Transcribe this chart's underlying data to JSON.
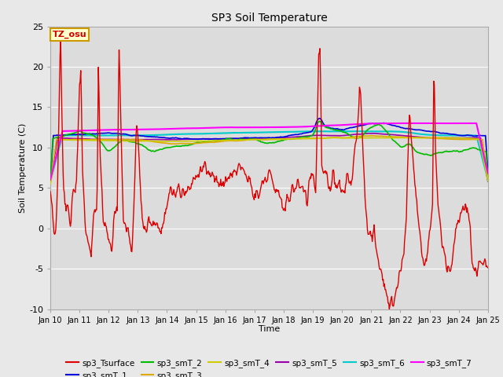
{
  "title": "SP3 Soil Temperature",
  "xlabel": "Time",
  "ylabel": "Soil Temperature (C)",
  "ylim": [
    -10,
    25
  ],
  "xlim": [
    0,
    15
  ],
  "fig_bg": "#e8e8e8",
  "plot_bg": "#dcdcdc",
  "tz_label": "TZ_osu",
  "x_tick_labels": [
    "Jan 10",
    "Jan 11",
    "Jan 12",
    "Jan 13",
    "Jan 14",
    "Jan 15",
    "Jan 16",
    "Jan 17",
    "Jan 18",
    "Jan 19",
    "Jan 20",
    "Jan 21",
    "Jan 22",
    "Jan 23",
    "Jan 24",
    "Jan 25"
  ],
  "series_colors": {
    "sp3_Tsurface": "#dd0000",
    "sp3_smT_1": "#0000dd",
    "sp3_smT_2": "#00bb00",
    "sp3_smT_3": "#ddaa00",
    "sp3_smT_4": "#cccc00",
    "sp3_smT_5": "#9900aa",
    "sp3_smT_6": "#00cccc",
    "sp3_smT_7": "#ff00ff"
  },
  "legend_entries": [
    "sp3_Tsurface",
    "sp3_smT_1",
    "sp3_smT_2",
    "sp3_smT_3",
    "sp3_smT_4",
    "sp3_smT_5",
    "sp3_smT_6",
    "sp3_smT_7"
  ]
}
